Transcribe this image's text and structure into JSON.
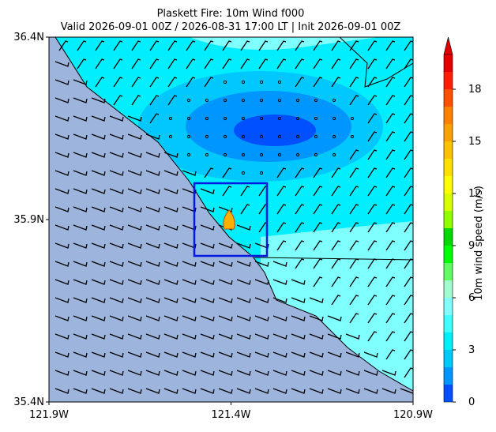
{
  "title": [
    "Plaskett Fire: 10m Wind f000",
    "Valid 2026-09-01 00Z / 2026-08-31 17:00 LT | Init 2026-09-01 00Z"
  ],
  "map": {
    "xlim": [
      -121.9,
      -120.9
    ],
    "ylim": [
      35.4,
      36.4
    ],
    "xticks": [
      {
        "value": -121.9,
        "label": "121.9W"
      },
      {
        "value": -121.4,
        "label": "121.4W"
      },
      {
        "value": -120.9,
        "label": "120.9W"
      }
    ],
    "yticks": [
      {
        "value": 35.4,
        "label": "35.4N"
      },
      {
        "value": 35.9,
        "label": "35.9N"
      },
      {
        "value": 36.4,
        "label": "36.4N"
      }
    ]
  },
  "colorbar": {
    "label": "10m wind speed (m/s)",
    "lim": [
      0,
      20
    ],
    "ticks": [
      0,
      3,
      6,
      9,
      12,
      15,
      18
    ],
    "bounds": [
      0,
      1,
      2,
      3,
      4,
      5,
      6,
      7,
      8,
      9,
      10,
      11,
      12,
      13,
      14,
      15,
      16,
      17,
      18,
      19,
      20
    ],
    "colors": [
      "#0050ff",
      "#0096ff",
      "#00c8ff",
      "#00eeff",
      "#40ffff",
      "#80ffff",
      "#a0ffd0",
      "#60ff60",
      "#00ff00",
      "#00d800",
      "#90ff00",
      "#d8ff00",
      "#ffff00",
      "#ffe000",
      "#ffc000",
      "#ffa000",
      "#ff8000",
      "#ff5000",
      "#ff2000",
      "#e00000"
    ]
  }
}
